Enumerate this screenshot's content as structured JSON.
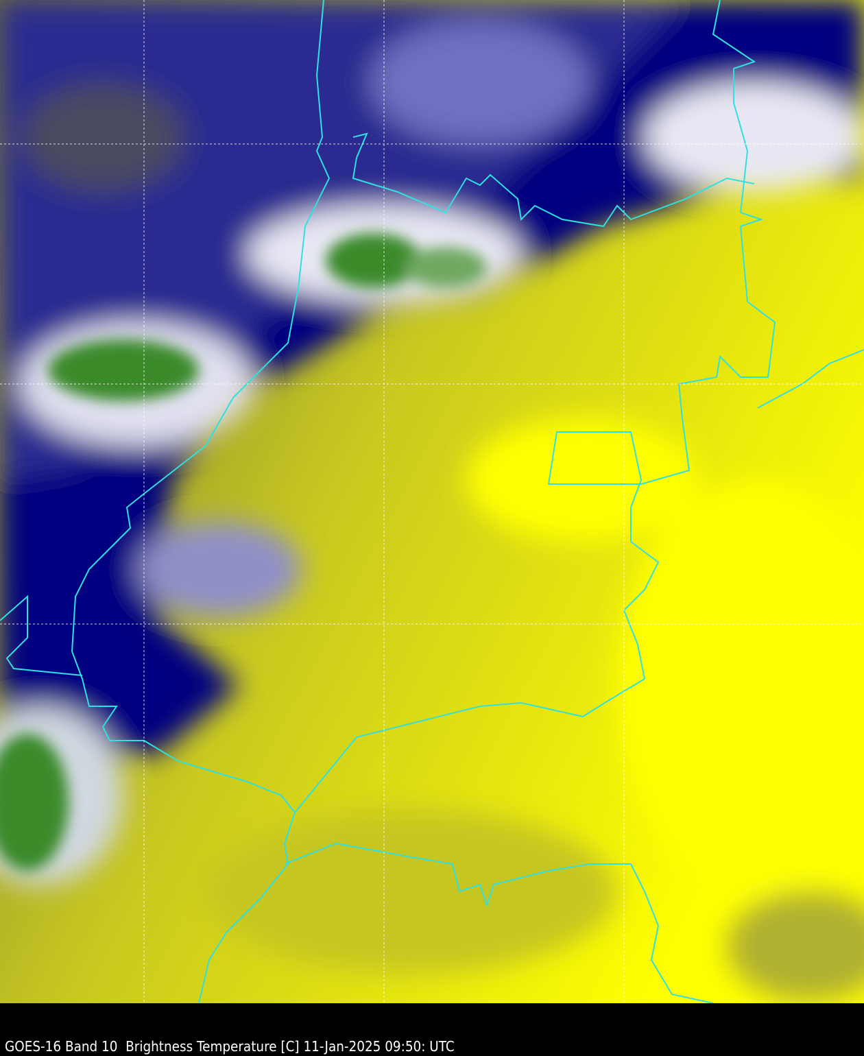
{
  "caption": "GOES-16 Band 10  Brightness Temperature [C] 11-Jan-2025 09:50: UTC",
  "colors": {
    "warm": "#f2f200",
    "mid": "#c8c820",
    "cold": "#000080",
    "coldest": "#ffffff",
    "very_cold": "#3a8a2a",
    "borders": "#30e0e0",
    "grid": "#ffffff"
  }
}
